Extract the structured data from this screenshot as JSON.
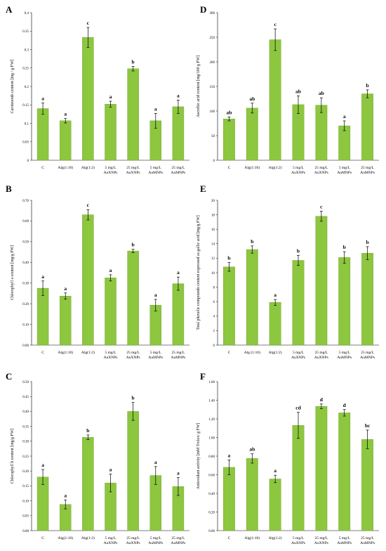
{
  "chart_data": [
    {
      "type": "bar",
      "panel": "A",
      "title": "",
      "xlabel": "",
      "ylabel": "Carotenoids content [mg / g FW]",
      "categories": [
        "C",
        "Alg(1:10)",
        "Alg(1:2)",
        "5 mg/L AuXNPs",
        "25 mg/L AuXNPs",
        "5 mg/L AuMNPs",
        "25 mg/L AuMNPs"
      ],
      "values": [
        0.14,
        0.107,
        0.333,
        0.152,
        0.248,
        0.107,
        0.145
      ],
      "errors": [
        0.015,
        0.006,
        0.027,
        0.008,
        0.006,
        0.02,
        0.018
      ],
      "letters": [
        "a",
        "a",
        "c",
        "a",
        "b",
        "a",
        "a"
      ],
      "ylim": [
        0,
        0.4
      ],
      "yticks": [
        "0",
        "0.05",
        "0.1",
        "0.15",
        "0.2",
        "0.25",
        "0.3",
        "0.35",
        "0.4"
      ],
      "bar_color": "#8dc63f",
      "grid": false
    },
    {
      "type": "bar",
      "panel": "D",
      "title": "",
      "xlabel": "",
      "ylabel": "Ascorbic acid content [mg/100 g FW]",
      "categories": [
        "C",
        "Alg(1:10)",
        "Alg(1:2)",
        "5 mg/L AuXNPs",
        "25 mg/L AuXNPs",
        "5 mg/L AuMNPs",
        "25 mg/L AuMNPs"
      ],
      "values": [
        84,
        106,
        245,
        113,
        112,
        70,
        135
      ],
      "errors": [
        4,
        10,
        22,
        18,
        15,
        10,
        8
      ],
      "letters": [
        "ab",
        "ab",
        "c",
        "ab",
        "ab",
        "a",
        "b"
      ],
      "ylim": [
        0,
        300
      ],
      "yticks": [
        "0",
        "50",
        "100",
        "150",
        "200",
        "250",
        "300"
      ],
      "bar_color": "#8dc63f",
      "grid": false
    },
    {
      "type": "bar",
      "panel": "B",
      "title": "",
      "xlabel": "",
      "ylabel": "Chlorophyll a content [mg/g FW]",
      "categories": [
        "C",
        "Alg(1:10)",
        "Alg(1:2)",
        "5 mg/L AuXNPs",
        "25 mg/L AuXNPs",
        "5 mg/L AuMNPs",
        "25 mg/L AuMNPs"
      ],
      "values": [
        0.275,
        0.237,
        0.63,
        0.325,
        0.455,
        0.193,
        0.297
      ],
      "errors": [
        0.035,
        0.015,
        0.025,
        0.015,
        0.008,
        0.028,
        0.032
      ],
      "letters": [
        "a",
        "a",
        "c",
        "a",
        "b",
        "a",
        "a"
      ],
      "ylim": [
        0,
        0.7
      ],
      "yticks": [
        "0.00",
        "0.10",
        "0.20",
        "0.30",
        "0.40",
        "0.50",
        "0.60",
        "0.70"
      ],
      "bar_color": "#8dc63f",
      "grid": false
    },
    {
      "type": "bar",
      "panel": "E",
      "title": "",
      "xlabel": "",
      "ylabel": "Total phenolic compounds content expressed as gallic acid [mg/g FW]",
      "categories": [
        "C",
        "Alg (1:10)",
        "Alg(1:2)",
        "5 mg/L AuXNPs",
        "25 mg/L AuXNPs",
        "5 mg/L AuMNPs",
        "25 mg/L AuMNPs"
      ],
      "values": [
        10.8,
        13.2,
        5.9,
        11.7,
        17.8,
        12.1,
        12.7
      ],
      "errors": [
        0.6,
        0.5,
        0.4,
        0.7,
        0.7,
        0.8,
        0.9
      ],
      "letters": [
        "b",
        "b",
        "a",
        "b",
        "c",
        "b",
        "b"
      ],
      "ylim": [
        0,
        20
      ],
      "yticks": [
        "0",
        "2",
        "4",
        "6",
        "8",
        "10",
        "12",
        "14",
        "16",
        "18",
        "20"
      ],
      "bar_color": "#8dc63f",
      "grid": false
    },
    {
      "type": "bar",
      "panel": "C",
      "title": "",
      "xlabel": "",
      "ylabel": "Chlorophyll b content [mg/g FW]",
      "categories": [
        "C",
        "Alg(1:10)",
        "Alg(1:2)",
        "5 mg/L AuXNPs",
        "25 mg/L AuXNPs",
        "5 mg/L AuMNPs",
        "25 mg/L AuMNPs"
      ],
      "values": [
        0.18,
        0.088,
        0.313,
        0.16,
        0.4,
        0.185,
        0.148
      ],
      "errors": [
        0.025,
        0.015,
        0.008,
        0.03,
        0.03,
        0.03,
        0.03
      ],
      "letters": [
        "a",
        "a",
        "b",
        "a",
        "b",
        "a",
        "a"
      ],
      "ylim": [
        0,
        0.5
      ],
      "yticks": [
        "0.00",
        "0.05",
        "0.10",
        "0.15",
        "0.20",
        "0.25",
        "0.30",
        "0.35",
        "0.40",
        "0.45",
        "0.50"
      ],
      "bar_color": "#8dc63f",
      "grid": false
    },
    {
      "type": "bar",
      "panel": "F",
      "title": "",
      "xlabel": "",
      "ylabel": "Antioxidant activity [mM Trolox/ g FW]",
      "categories": [
        "C",
        "Alg(1:10)",
        "Alg(1:2)",
        "5 mg/L AuXNPs",
        "25 mg/L AuXNPs",
        "5 mg/L AuMNPs",
        "25 mg/L AuMNPs"
      ],
      "values": [
        0.68,
        0.775,
        0.555,
        1.13,
        1.335,
        1.265,
        0.98
      ],
      "errors": [
        0.08,
        0.05,
        0.04,
        0.14,
        0.025,
        0.035,
        0.1
      ],
      "letters": [
        "a",
        "ab",
        "a",
        "cd",
        "d",
        "d",
        "bc"
      ],
      "ylim": [
        0,
        1.6
      ],
      "yticks": [
        "0.00",
        "0.20",
        "0.40",
        "0.60",
        "0.80",
        "1.00",
        "1.20",
        "1.40",
        "1.60"
      ],
      "bar_color": "#8dc63f",
      "grid": false
    }
  ]
}
